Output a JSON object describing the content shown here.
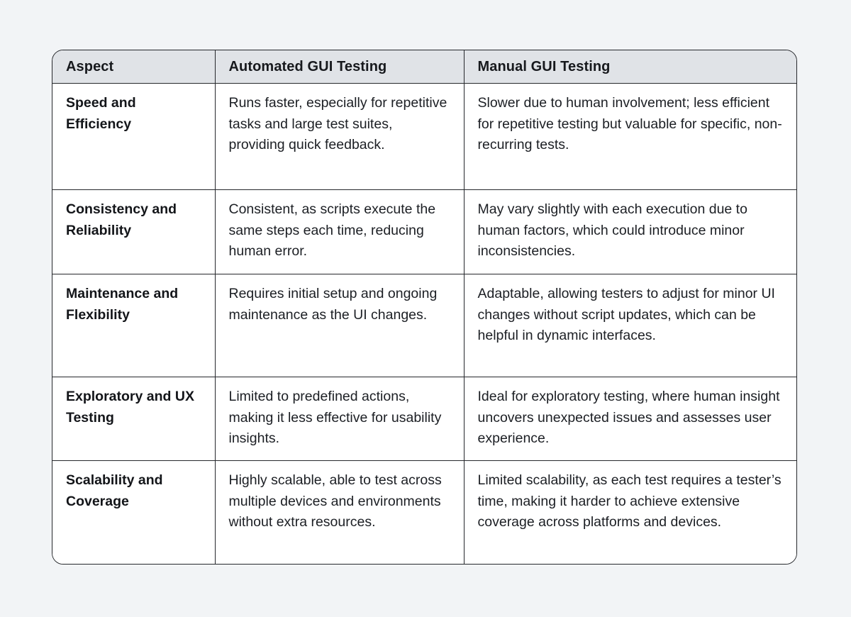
{
  "colors": {
    "page_background": "#f2f4f6",
    "card_background": "#ffffff",
    "header_background": "#e0e3e7",
    "grid_border": "#26282c",
    "body_text": "#1c1f24"
  },
  "table": {
    "columns": [
      "Aspect",
      "Automated GUI Testing",
      "Manual GUI Testing"
    ],
    "rows": [
      {
        "aspect": "Speed and Efficiency",
        "automated": "Runs faster, especially for repetitive tasks and large test suites, providing quick feedback.",
        "manual": "Slower due to human involvement; less efficient for repetitive testing but valuable for specific, non-recurring tests."
      },
      {
        "aspect": "Consistency and Reliability",
        "automated": "Consistent, as scripts execute the same steps each time, reducing human error.",
        "manual": "May vary slightly with each execution due to human factors, which could introduce minor inconsistencies."
      },
      {
        "aspect": "Maintenance and Flexibility",
        "automated": "Requires initial setup and ongoing maintenance as the UI changes.",
        "manual": "Adaptable, allowing testers to adjust for minor UI changes without script updates, which can be helpful in dynamic interfaces."
      },
      {
        "aspect": "Exploratory and UX Testing",
        "automated": "Limited to predefined actions, making it less effective for usability insights.",
        "manual": "Ideal for exploratory testing, where human insight uncovers unexpected issues and assesses user experience."
      },
      {
        "aspect": "Scalability and Coverage",
        "automated": "Highly scalable, able to test across multiple devices and environments without extra resources.",
        "manual": "Limited scalability, as each test requires a tester’s time, making it harder to achieve extensive coverage across platforms and devices."
      }
    ]
  }
}
